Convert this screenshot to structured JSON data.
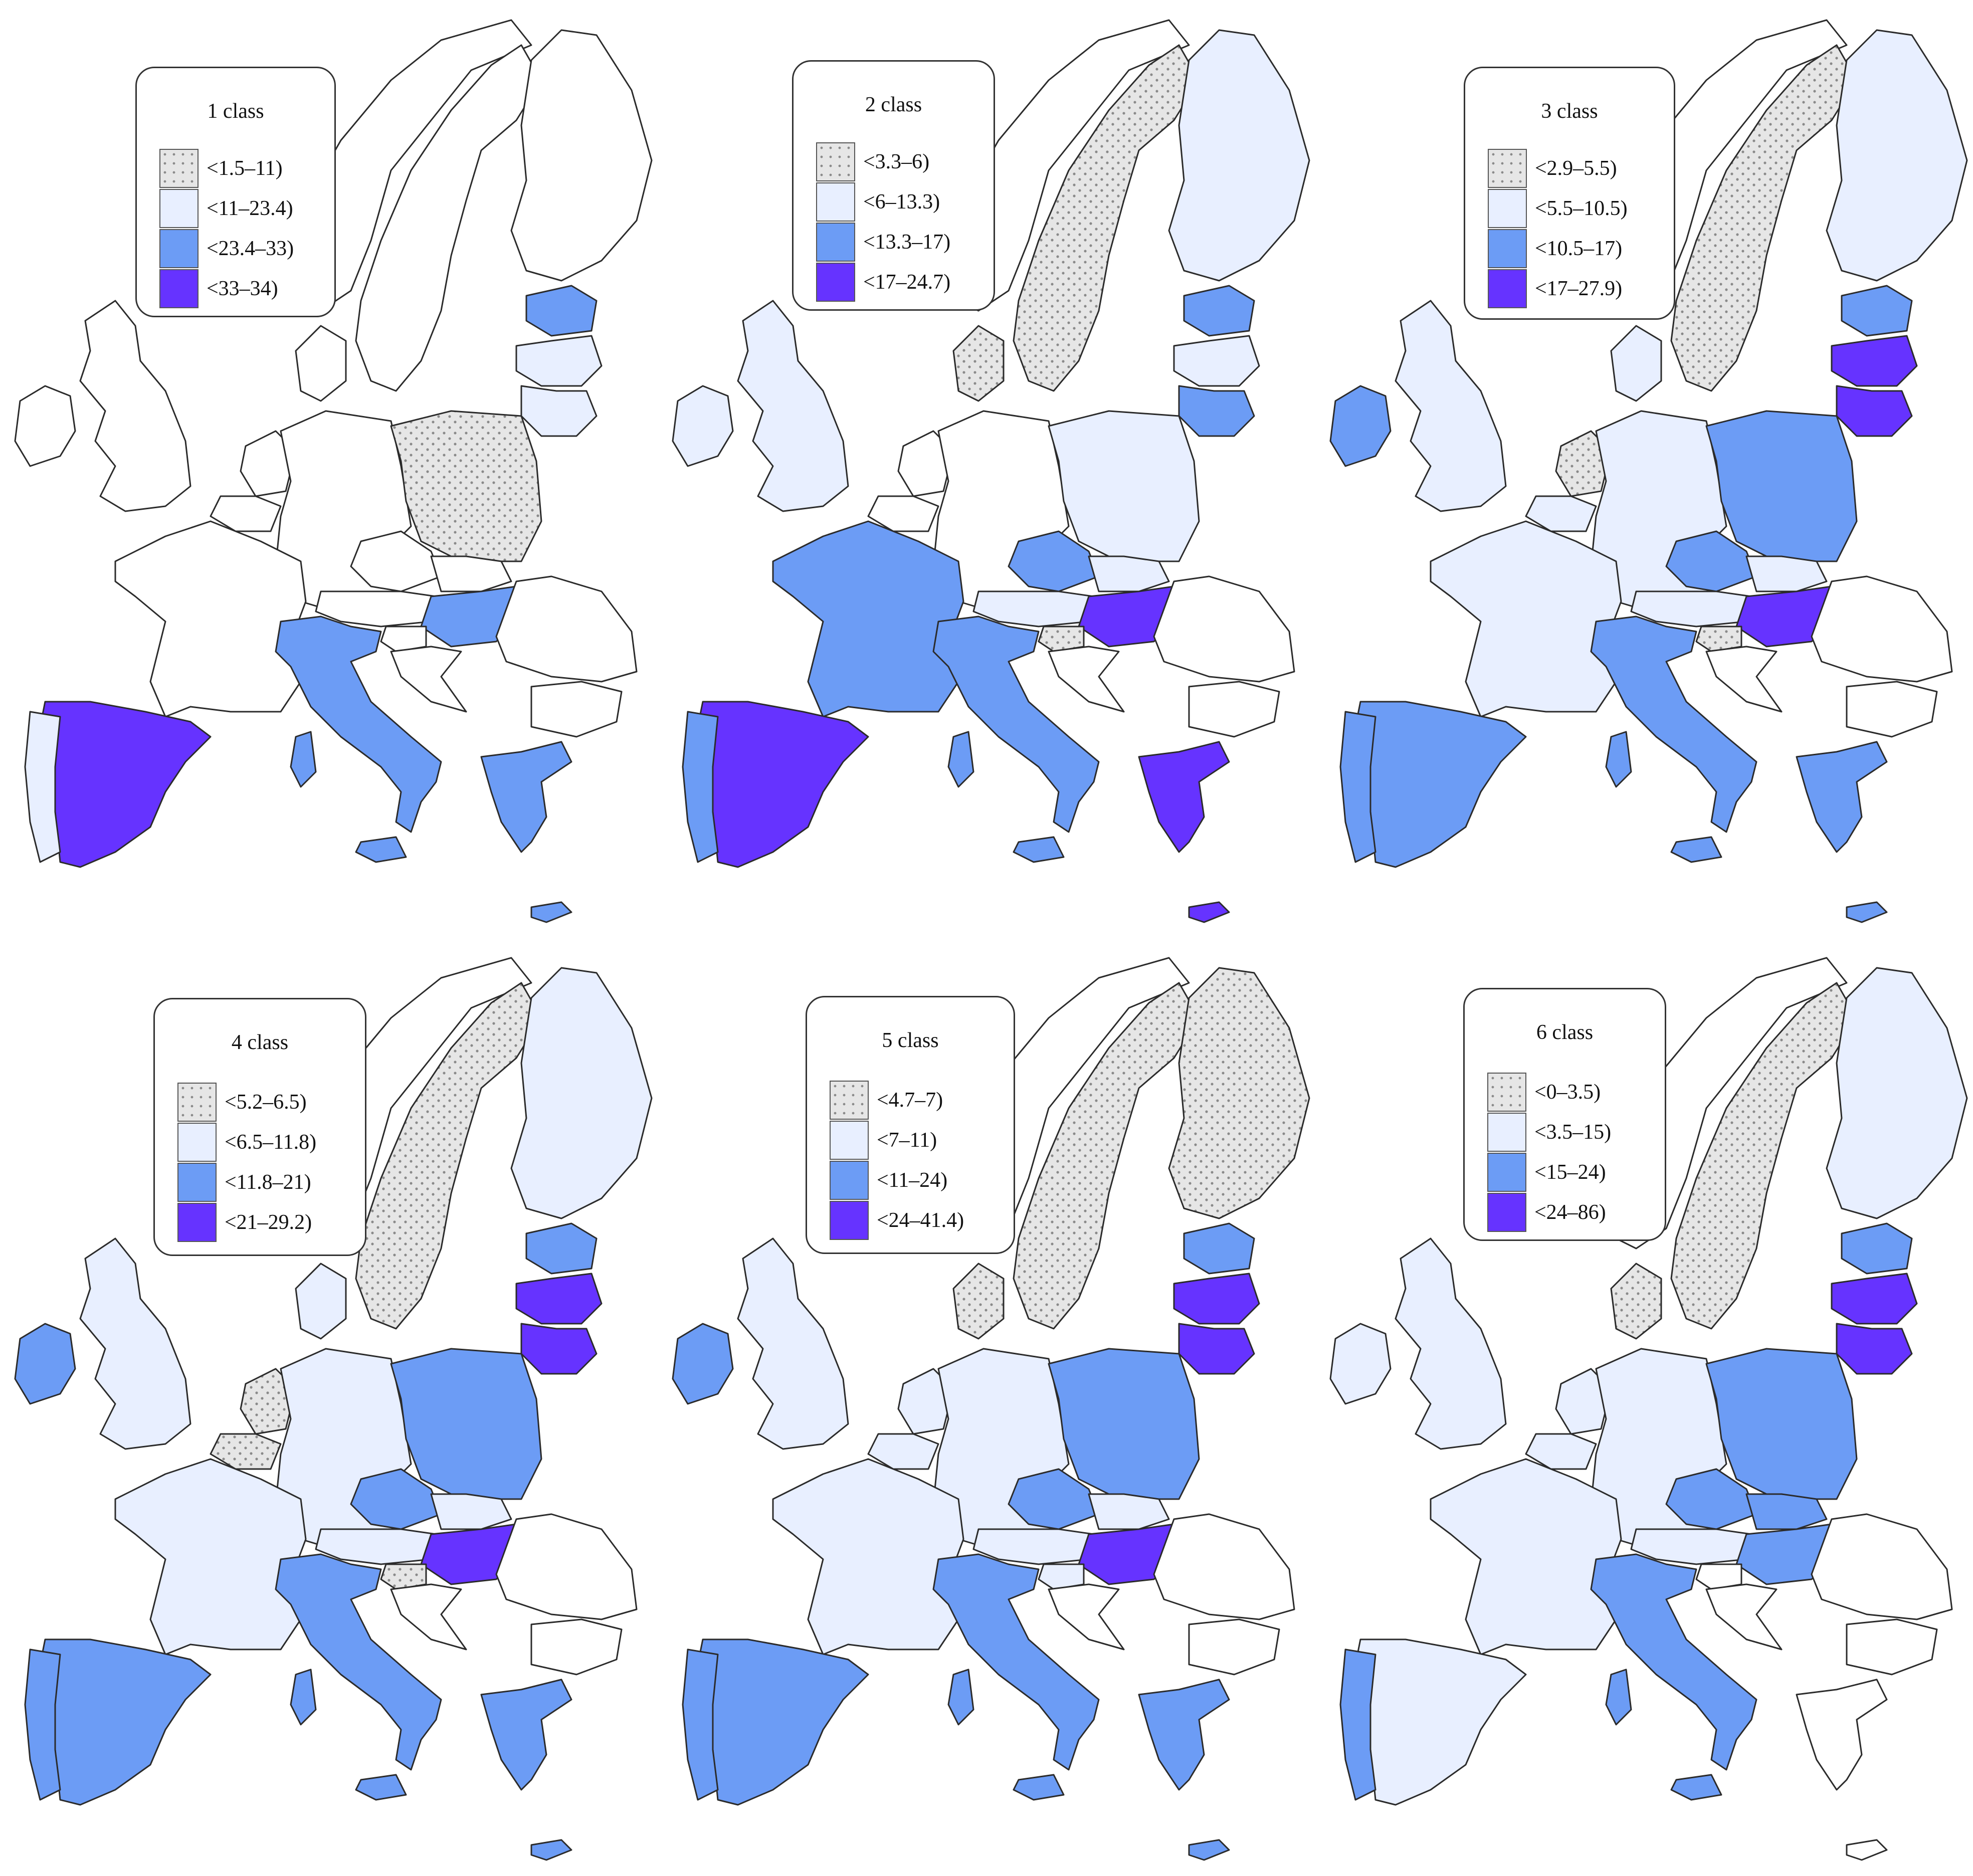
{
  "colors": {
    "class0_dotted": "#e6e6e6",
    "class1_light": "#e8efff",
    "class2_mid": "#6c9cf5",
    "class3_dark": "#6633ff",
    "border": "#2b2b2b",
    "no_data": "#ffffff"
  },
  "panels": [
    {
      "title": "1 class",
      "legend": [
        "<1.5–11)",
        "<11–23.4)",
        "<23.4–33)",
        "<33–34)"
      ],
      "countries": {
        "IE": "none",
        "UK": "none",
        "FR": "none",
        "ES": "c3",
        "PT": "c1",
        "IT": "c2",
        "DE": "none",
        "PL": "c0",
        "CZ": "none",
        "AT": "none",
        "HU": "c2",
        "SE": "none",
        "FI": "none",
        "NO": "none",
        "EE": "c2",
        "LV": "c1",
        "LT": "c1",
        "GR": "c2",
        "RO": "none",
        "BG": "none",
        "SK": "none",
        "SI": "none",
        "HR": "none",
        "NL": "none",
        "BE": "none",
        "DK": "none",
        "CY": "c2"
      }
    },
    {
      "title": "2 class",
      "legend": [
        "<3.3–6)",
        "<6–13.3)",
        "<13.3–17)",
        "<17–24.7)"
      ],
      "countries": {
        "IE": "c1",
        "UK": "c1",
        "FR": "c2",
        "ES": "c3",
        "PT": "c2",
        "IT": "c2",
        "DE": "none",
        "PL": "c1",
        "CZ": "c2",
        "AT": "c1",
        "HU": "c3",
        "SE": "c0",
        "FI": "c1",
        "NO": "none",
        "EE": "c2",
        "LV": "c1",
        "LT": "c2",
        "GR": "c3",
        "RO": "none",
        "BG": "none",
        "SK": "c1",
        "SI": "c0",
        "HR": "none",
        "NL": "none",
        "BE": "none",
        "DK": "c0",
        "CY": "c3"
      }
    },
    {
      "title": "3 class",
      "legend": [
        "<2.9–5.5)",
        "<5.5–10.5)",
        "<10.5–17)",
        "<17–27.9)"
      ],
      "countries": {
        "IE": "c2",
        "UK": "c1",
        "FR": "c1",
        "ES": "c2",
        "PT": "c2",
        "IT": "c2",
        "DE": "c1",
        "PL": "c2",
        "CZ": "c2",
        "AT": "c1",
        "HU": "c3",
        "SE": "c0",
        "FI": "c1",
        "NO": "none",
        "EE": "c2",
        "LV": "c3",
        "LT": "c3",
        "GR": "c2",
        "RO": "none",
        "BG": "none",
        "SK": "c1",
        "SI": "c0",
        "HR": "none",
        "NL": "c0",
        "BE": "c1",
        "DK": "c1",
        "CY": "c2"
      }
    },
    {
      "title": "4 class",
      "legend": [
        "<5.2–6.5)",
        "<6.5–11.8)",
        "<11.8–21)",
        "<21–29.2)"
      ],
      "countries": {
        "IE": "c2",
        "UK": "c1",
        "FR": "c1",
        "ES": "c2",
        "PT": "c2",
        "IT": "c2",
        "DE": "c1",
        "PL": "c2",
        "CZ": "c2",
        "AT": "c1",
        "HU": "c3",
        "SE": "c0",
        "FI": "c1",
        "NO": "none",
        "EE": "c2",
        "LV": "c3",
        "LT": "c3",
        "GR": "c2",
        "RO": "none",
        "BG": "none",
        "SK": "c1",
        "SI": "c0",
        "HR": "none",
        "NL": "c0",
        "BE": "c0",
        "DK": "c1",
        "CY": "c2"
      }
    },
    {
      "title": "5 class",
      "legend": [
        "<4.7–7)",
        "<7–11)",
        "<11–24)",
        "<24–41.4)"
      ],
      "countries": {
        "IE": "c2",
        "UK": "c1",
        "FR": "c1",
        "ES": "c2",
        "PT": "c2",
        "IT": "c2",
        "DE": "c1",
        "PL": "c2",
        "CZ": "c2",
        "AT": "c1",
        "HU": "c3",
        "SE": "c0",
        "FI": "c0",
        "NO": "none",
        "EE": "c2",
        "LV": "c3",
        "LT": "c3",
        "GR": "c2",
        "RO": "none",
        "BG": "none",
        "SK": "c1",
        "SI": "c1",
        "HR": "none",
        "NL": "c1",
        "BE": "c1",
        "DK": "c0",
        "CY": "c2"
      }
    },
    {
      "title": "6 class",
      "legend": [
        "<0–3.5)",
        "<3.5–15)",
        "<15–24)",
        "<24–86)"
      ],
      "countries": {
        "IE": "c1",
        "UK": "c1",
        "FR": "c1",
        "ES": "c1",
        "PT": "c2",
        "IT": "c2",
        "DE": "c1",
        "PL": "c2",
        "CZ": "c2",
        "AT": "c1",
        "HU": "c2",
        "SE": "c0",
        "FI": "c1",
        "NO": "none",
        "EE": "c2",
        "LV": "c3",
        "LT": "c3",
        "GR": "none",
        "RO": "none",
        "BG": "none",
        "SK": "c2",
        "SI": "none",
        "HR": "none",
        "NL": "c1",
        "BE": "c1",
        "DK": "c0",
        "CY": "none"
      }
    }
  ]
}
